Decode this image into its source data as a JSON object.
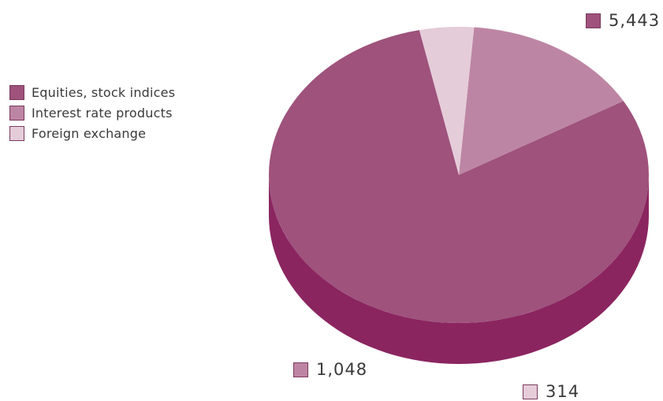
{
  "chart_data": {
    "type": "pie",
    "title": "",
    "legend_position": "left",
    "categories": [
      "Equities, stock indices",
      "Interest rate products",
      "Foreign exchange"
    ],
    "values": [
      5443,
      1048,
      314
    ],
    "value_labels": [
      "5,443",
      "1,048",
      "314"
    ],
    "colors": [
      "#9e527c",
      "#bd85a4",
      "#e5ccd9"
    ],
    "side_colors": [
      "#8b2560",
      "#af6f91",
      "#d6b0c3"
    ],
    "swatch_border": "#7a3a5e"
  }
}
